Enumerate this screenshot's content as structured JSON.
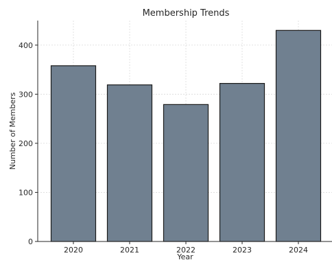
{
  "chart_data": {
    "type": "bar",
    "title": "Membership Trends",
    "xlabel": "Year",
    "ylabel": "Number of Members",
    "categories": [
      "2020",
      "2021",
      "2022",
      "2023",
      "2024"
    ],
    "values": [
      358,
      319,
      279,
      322,
      430
    ],
    "ylim": [
      0,
      450
    ],
    "yticks": [
      0,
      100,
      200,
      300,
      400
    ],
    "grid": true,
    "legend": "none",
    "bar_color": "#708090",
    "bar_edge_color": "#1a1a1a",
    "grid_color": "#d9d9d9"
  }
}
